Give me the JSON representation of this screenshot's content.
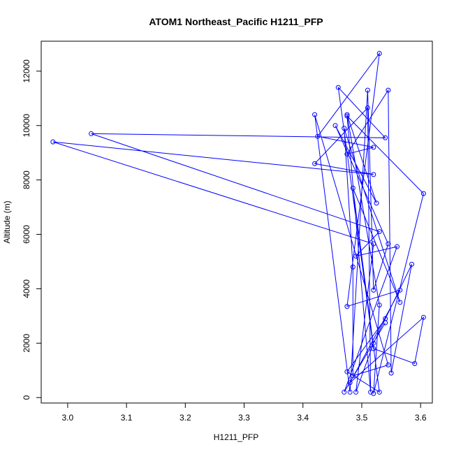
{
  "chart_data": {
    "type": "line",
    "title": "ATOM1 Northeast_Pacific H1211_PFP",
    "xlabel": "H1211_PFP",
    "ylabel": "Altitude (m)",
    "xlim": [
      2.955,
      3.62
    ],
    "ylim": [
      -200,
      13100
    ],
    "xticks": [
      "3.0",
      "3.1",
      "3.2",
      "3.3",
      "3.4",
      "3.5",
      "3.6"
    ],
    "yticks": [
      "0",
      "2000",
      "4000",
      "6000",
      "8000",
      "10000",
      "12000"
    ],
    "grid": false,
    "legend": "none",
    "series": [
      {
        "color": "#0000ff",
        "marker": "open-circle",
        "points": [
          [
            3.54,
            2750
          ],
          [
            3.47,
            200
          ],
          [
            3.56,
            5550
          ],
          [
            3.49,
            5200
          ],
          [
            3.53,
            6100
          ],
          [
            3.04,
            9700
          ],
          [
            3.54,
            9550
          ],
          [
            3.46,
            11400
          ],
          [
            3.52,
            1800
          ],
          [
            3.59,
            1250
          ],
          [
            3.605,
            2950
          ],
          [
            3.48,
            550
          ],
          [
            3.565,
            3950
          ],
          [
            3.475,
            3350
          ],
          [
            3.53,
            12650
          ],
          [
            3.425,
            9600
          ],
          [
            3.52,
            9200
          ],
          [
            3.475,
            8950
          ],
          [
            3.545,
            11300
          ],
          [
            3.55,
            900
          ],
          [
            3.585,
            4900
          ],
          [
            3.52,
            2000
          ],
          [
            3.49,
            200
          ],
          [
            3.52,
            5650
          ],
          [
            2.975,
            9400
          ],
          [
            3.52,
            8200
          ],
          [
            3.42,
            8600
          ],
          [
            3.51,
            10650
          ],
          [
            3.515,
            200
          ],
          [
            3.475,
            10350
          ],
          [
            3.605,
            7500
          ],
          [
            3.52,
            150
          ],
          [
            3.53,
            3400
          ],
          [
            3.475,
            10400
          ],
          [
            3.525,
            7150
          ],
          [
            3.455,
            10000
          ],
          [
            3.545,
            5650
          ],
          [
            3.52,
            3950
          ],
          [
            3.51,
            11300
          ],
          [
            3.48,
            200
          ],
          [
            3.42,
            10400
          ],
          [
            3.545,
            1200
          ],
          [
            3.485,
            800
          ],
          [
            3.485,
            4800
          ],
          [
            3.47,
            9900
          ],
          [
            3.565,
            3500
          ],
          [
            3.485,
            7700
          ],
          [
            3.53,
            200
          ],
          [
            3.475,
            950
          ],
          [
            3.54,
            2900
          ]
        ]
      }
    ]
  }
}
